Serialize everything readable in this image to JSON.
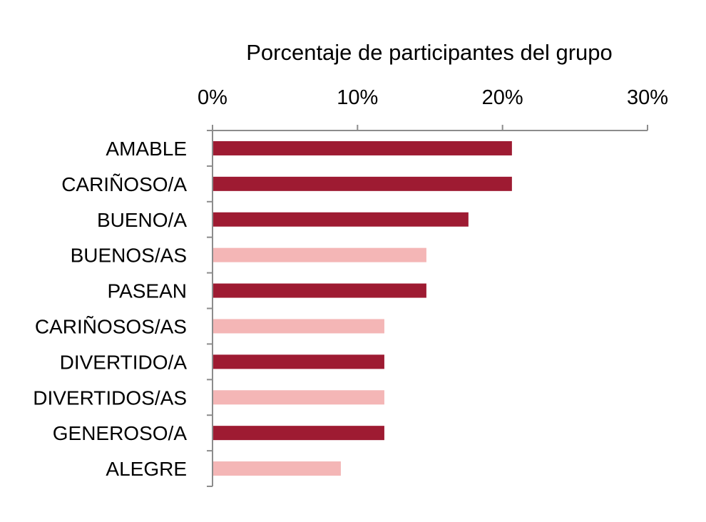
{
  "chart_data": {
    "type": "bar",
    "orientation": "horizontal",
    "title": "",
    "xlabel": "Porcentaje de participantes del grupo",
    "ylabel": "",
    "xlim": [
      0,
      30
    ],
    "x_ticks": [
      "0%",
      "10%",
      "20%",
      "30%"
    ],
    "tick_values": [
      0,
      10,
      20,
      30
    ],
    "categories": [
      "AMABLE",
      "CARIÑOSO/A",
      "BUENO/A",
      "BUENOS/AS",
      "PASEAN",
      "CARIÑOSOS/AS",
      "DIVERTIDO/A",
      "DIVERTIDOS/AS",
      "GENEROSO/A",
      "ALEGRE"
    ],
    "values": [
      20.6,
      20.6,
      17.6,
      14.7,
      14.7,
      11.8,
      11.8,
      11.8,
      11.8,
      8.8
    ],
    "bar_colors": [
      "#9E1B32",
      "#9E1B32",
      "#9E1B32",
      "#F4B6B6",
      "#9E1B32",
      "#F4B6B6",
      "#9E1B32",
      "#F4B6B6",
      "#9E1B32",
      "#F4B6B6"
    ],
    "grid": false,
    "legend": "none",
    "axis_color": "#8C8C8C"
  }
}
